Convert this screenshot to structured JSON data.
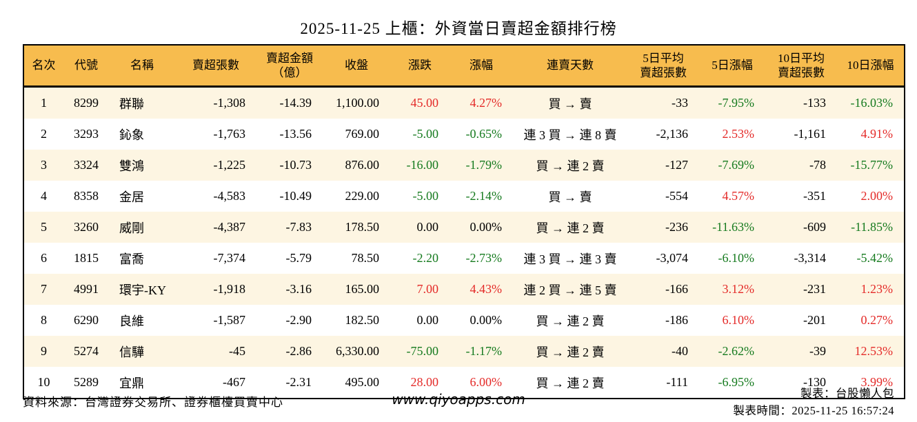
{
  "title": "2025-11-25 上櫃：外資當日賣超金額排行榜",
  "colors": {
    "header_bg": "#f7bc4e",
    "row_alt_bg": "#fdf5e2",
    "row_bg": "#ffffff",
    "up_red": "#e42a28",
    "down_green": "#157a1e",
    "border": "#000000"
  },
  "table": {
    "columns": [
      {
        "key": "rank",
        "label": "名次",
        "align": "center"
      },
      {
        "key": "code",
        "label": "代號",
        "align": "center"
      },
      {
        "key": "name",
        "label": "名稱",
        "align": "left"
      },
      {
        "key": "sell_shares",
        "label": "賣超張數",
        "align": "right"
      },
      {
        "key": "sell_amount",
        "label": "賣超金額\n（億）",
        "align": "right"
      },
      {
        "key": "close",
        "label": "收盤",
        "align": "right"
      },
      {
        "key": "change",
        "label": "漲跌",
        "align": "right",
        "colored": true
      },
      {
        "key": "change_pct",
        "label": "漲幅",
        "align": "right",
        "colored": true
      },
      {
        "key": "streak",
        "label": "連賣天數",
        "align": "center"
      },
      {
        "key": "avg5",
        "label": "5日平均\n賣超張數",
        "align": "right"
      },
      {
        "key": "pct5",
        "label": "5日漲幅",
        "align": "right",
        "colored": true
      },
      {
        "key": "avg10",
        "label": "10日平均\n賣超張數",
        "align": "right"
      },
      {
        "key": "pct10",
        "label": "10日漲幅",
        "align": "right",
        "colored": true
      }
    ],
    "rows": [
      {
        "rank": "1",
        "code": "8299",
        "name": "群聯",
        "sell_shares": "-1,308",
        "sell_amount": "-14.39",
        "close": "1,100.00",
        "change": "45.00",
        "change_color": "red",
        "change_pct": "4.27%",
        "change_pct_color": "red",
        "streak": "買 → 賣",
        "avg5": "-33",
        "pct5": "-7.95%",
        "pct5_color": "green",
        "avg10": "-133",
        "pct10": "-16.03%",
        "pct10_color": "green"
      },
      {
        "rank": "2",
        "code": "3293",
        "name": "鈊象",
        "sell_shares": "-1,763",
        "sell_amount": "-13.56",
        "close": "769.00",
        "change": "-5.00",
        "change_color": "green",
        "change_pct": "-0.65%",
        "change_pct_color": "green",
        "streak": "連 3 買 → 連 8 賣",
        "avg5": "-2,136",
        "pct5": "2.53%",
        "pct5_color": "red",
        "avg10": "-1,161",
        "pct10": "4.91%",
        "pct10_color": "red"
      },
      {
        "rank": "3",
        "code": "3324",
        "name": "雙鴻",
        "sell_shares": "-1,225",
        "sell_amount": "-10.73",
        "close": "876.00",
        "change": "-16.00",
        "change_color": "green",
        "change_pct": "-1.79%",
        "change_pct_color": "green",
        "streak": "買 → 連 2 賣",
        "avg5": "-127",
        "pct5": "-7.69%",
        "pct5_color": "green",
        "avg10": "-78",
        "pct10": "-15.77%",
        "pct10_color": "green"
      },
      {
        "rank": "4",
        "code": "8358",
        "name": "金居",
        "sell_shares": "-4,583",
        "sell_amount": "-10.49",
        "close": "229.00",
        "change": "-5.00",
        "change_color": "green",
        "change_pct": "-2.14%",
        "change_pct_color": "green",
        "streak": "買 → 賣",
        "avg5": "-554",
        "pct5": "4.57%",
        "pct5_color": "red",
        "avg10": "-351",
        "pct10": "2.00%",
        "pct10_color": "red"
      },
      {
        "rank": "5",
        "code": "3260",
        "name": "威剛",
        "sell_shares": "-4,387",
        "sell_amount": "-7.83",
        "close": "178.50",
        "change": "0.00",
        "change_color": "flat",
        "change_pct": "0.00%",
        "change_pct_color": "flat",
        "streak": "買 → 連 2 賣",
        "avg5": "-236",
        "pct5": "-11.63%",
        "pct5_color": "green",
        "avg10": "-609",
        "pct10": "-11.85%",
        "pct10_color": "green"
      },
      {
        "rank": "6",
        "code": "1815",
        "name": "富喬",
        "sell_shares": "-7,374",
        "sell_amount": "-5.79",
        "close": "78.50",
        "change": "-2.20",
        "change_color": "green",
        "change_pct": "-2.73%",
        "change_pct_color": "green",
        "streak": "連 3 買 → 連 3 賣",
        "avg5": "-3,074",
        "pct5": "-6.10%",
        "pct5_color": "green",
        "avg10": "-3,314",
        "pct10": "-5.42%",
        "pct10_color": "green"
      },
      {
        "rank": "7",
        "code": "4991",
        "name": "環宇-KY",
        "sell_shares": "-1,918",
        "sell_amount": "-3.16",
        "close": "165.00",
        "change": "7.00",
        "change_color": "red",
        "change_pct": "4.43%",
        "change_pct_color": "red",
        "streak": "連 2 買 → 連 5 賣",
        "avg5": "-166",
        "pct5": "3.12%",
        "pct5_color": "red",
        "avg10": "-231",
        "pct10": "1.23%",
        "pct10_color": "red"
      },
      {
        "rank": "8",
        "code": "6290",
        "name": "良維",
        "sell_shares": "-1,587",
        "sell_amount": "-2.90",
        "close": "182.50",
        "change": "0.00",
        "change_color": "flat",
        "change_pct": "0.00%",
        "change_pct_color": "flat",
        "streak": "買 → 連 2 賣",
        "avg5": "-186",
        "pct5": "6.10%",
        "pct5_color": "red",
        "avg10": "-201",
        "pct10": "0.27%",
        "pct10_color": "red"
      },
      {
        "rank": "9",
        "code": "5274",
        "name": "信驊",
        "sell_shares": "-45",
        "sell_amount": "-2.86",
        "close": "6,330.00",
        "change": "-75.00",
        "change_color": "green",
        "change_pct": "-1.17%",
        "change_pct_color": "green",
        "streak": "買 → 連 2 賣",
        "avg5": "-40",
        "pct5": "-2.62%",
        "pct5_color": "green",
        "avg10": "-39",
        "pct10": "12.53%",
        "pct10_color": "red"
      },
      {
        "rank": "10",
        "code": "5289",
        "name": "宜鼎",
        "sell_shares": "-467",
        "sell_amount": "-2.31",
        "close": "495.00",
        "change": "28.00",
        "change_color": "red",
        "change_pct": "6.00%",
        "change_pct_color": "red",
        "streak": "買 → 連 2 賣",
        "avg5": "-111",
        "pct5": "-6.95%",
        "pct5_color": "green",
        "avg10": "-130",
        "pct10": "3.99%",
        "pct10_color": "red"
      }
    ]
  },
  "footer": {
    "source": "資料來源：台灣證券交易所、證券櫃檯買賣中心",
    "website": "www.qiyoapps.com",
    "maker": "製表：台股懶人包",
    "made_time": "製表時間：2025-11-25 16:57:24"
  }
}
